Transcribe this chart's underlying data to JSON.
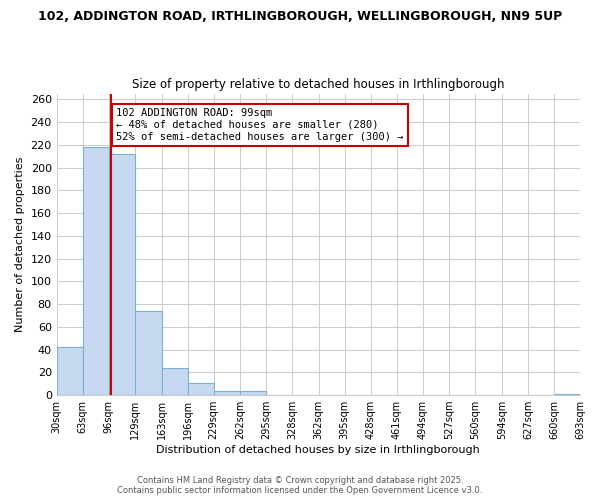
{
  "title1": "102, ADDINGTON ROAD, IRTHLINGBOROUGH, WELLINGBOROUGH, NN9 5UP",
  "title2": "Size of property relative to detached houses in Irthlingborough",
  "xlabel": "Distribution of detached houses by size in Irthlingborough",
  "ylabel": "Number of detached properties",
  "bar_color": "#c6d9f1",
  "bar_edge_color": "#7bafd4",
  "property_line_x": 99,
  "property_line_color": "#cc0000",
  "bin_edges": [
    30,
    63,
    96,
    129,
    163,
    196,
    229,
    262,
    295,
    328,
    362,
    395,
    428,
    461,
    494,
    527,
    560,
    594,
    627,
    660,
    693
  ],
  "bin_labels": [
    "30sqm",
    "63sqm",
    "96sqm",
    "129sqm",
    "163sqm",
    "196sqm",
    "229sqm",
    "262sqm",
    "295sqm",
    "328sqm",
    "362sqm",
    "395sqm",
    "428sqm",
    "461sqm",
    "494sqm",
    "527sqm",
    "560sqm",
    "594sqm",
    "627sqm",
    "660sqm",
    "693sqm"
  ],
  "counts": [
    42,
    218,
    212,
    74,
    24,
    11,
    4,
    4,
    0,
    0,
    0,
    0,
    0,
    0,
    0,
    0,
    0,
    0,
    0,
    1
  ],
  "ylim": [
    0,
    265
  ],
  "yticks": [
    0,
    20,
    40,
    60,
    80,
    100,
    120,
    140,
    160,
    180,
    200,
    220,
    240,
    260
  ],
  "annotation_title": "102 ADDINGTON ROAD: 99sqm",
  "annotation_line1": "← 48% of detached houses are smaller (280)",
  "annotation_line2": "52% of semi-detached houses are larger (300) →",
  "annotation_box_color": "#ffffff",
  "annotation_box_edge": "#cc0000",
  "footer1": "Contains HM Land Registry data © Crown copyright and database right 2025.",
  "footer2": "Contains public sector information licensed under the Open Government Licence v3.0."
}
